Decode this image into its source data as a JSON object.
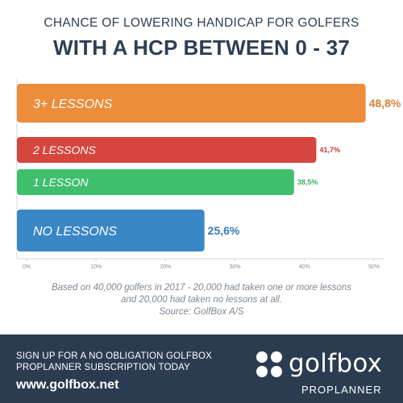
{
  "header": {
    "line1": "CHANCE OF LOWERING HANDICAP FOR GOLFERS",
    "line2": "WITH A HCP BETWEEN 0 - 37"
  },
  "chart_data": {
    "type": "bar",
    "orientation": "horizontal",
    "categories": [
      "3+ LESSONS",
      "2 LESSONS",
      "1 LESSON",
      "NO LESSONS"
    ],
    "values": [
      48.8,
      41.7,
      38.5,
      25.6
    ],
    "value_labels": [
      "48,8%",
      "41,7%",
      "38,5%",
      "25,6%"
    ],
    "colors": [
      "#ed8c3a",
      "#d6463e",
      "#3fbf6c",
      "#3a87c6"
    ],
    "xlim": [
      0,
      50
    ],
    "ticks": [
      "0%",
      "10%",
      "20%",
      "30%",
      "40%",
      "50%"
    ],
    "grid": false,
    "legend": "none"
  },
  "caption": {
    "line1": "Based on 40,000 golfers in 2017 - 20,000 had taken one or more lessons",
    "line2": "and 20,000 had taken no lessons at all.",
    "line3": "Source: GolfBox A/S"
  },
  "footer": {
    "promo_line1": "SIGN UP FOR A NO OBLIGATION GOLFBOX",
    "promo_line2": "PROPLANNER SUBSCRIPTION TODAY",
    "website": "www.golfbox.net",
    "logo_text": "golfbox",
    "logo_sub": "PROPLANNER",
    "logo_icon": "golfbox-dots-icon"
  }
}
